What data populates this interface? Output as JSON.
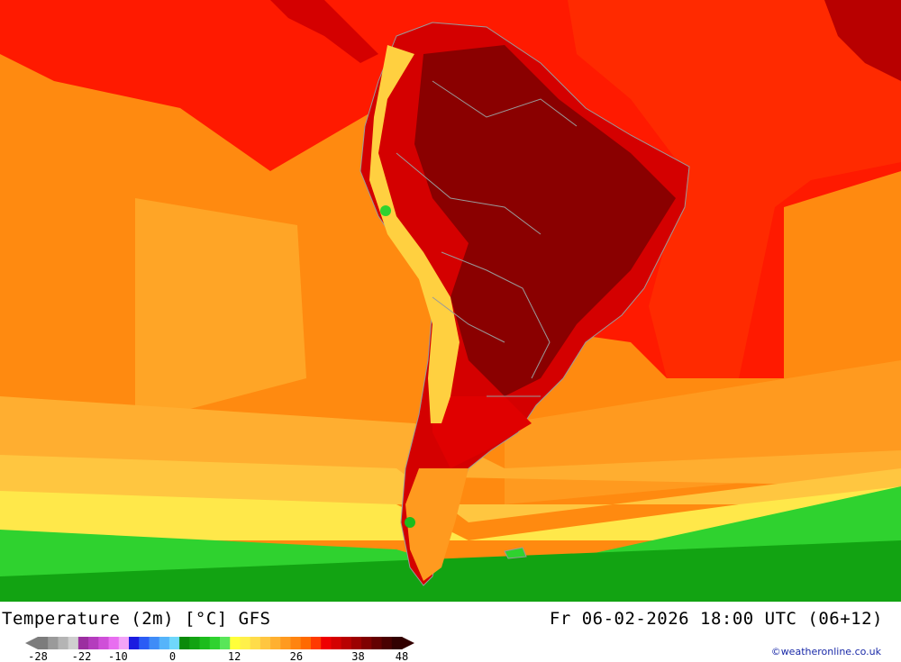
{
  "map": {
    "title": "Temperature (2m) [°C] GFS",
    "valid_time": "Fr 06-02-2026 18:00 UTC (06+12)",
    "credit": "©weatheronline.co.uk",
    "region": "South America",
    "legend": {
      "ticks": [
        "-28",
        "-22",
        "-10",
        "0",
        "12",
        "26",
        "38",
        "48"
      ],
      "colors": [
        "#7c7c7c",
        "#9a9a9a",
        "#b4b4b4",
        "#cfcfcf",
        "#9b2fa0",
        "#b43cbd",
        "#cf4fd8",
        "#e86ef0",
        "#f3a4f7",
        "#1b1be0",
        "#2b5cf5",
        "#3f8cf7",
        "#55b4fa",
        "#6fd7fb",
        "#0a8a0a",
        "#12a312",
        "#1cbc1c",
        "#2fd22f",
        "#59e659",
        "#ffff3a",
        "#fff04a",
        "#ffdc4a",
        "#ffc640",
        "#ffb030",
        "#ff9a1f",
        "#ff8410",
        "#ff6a00",
        "#ff3a00",
        "#ef0000",
        "#d40000",
        "#b80000",
        "#9c0000",
        "#800000",
        "#640000",
        "#4a0000",
        "#320000"
      ]
    }
  }
}
